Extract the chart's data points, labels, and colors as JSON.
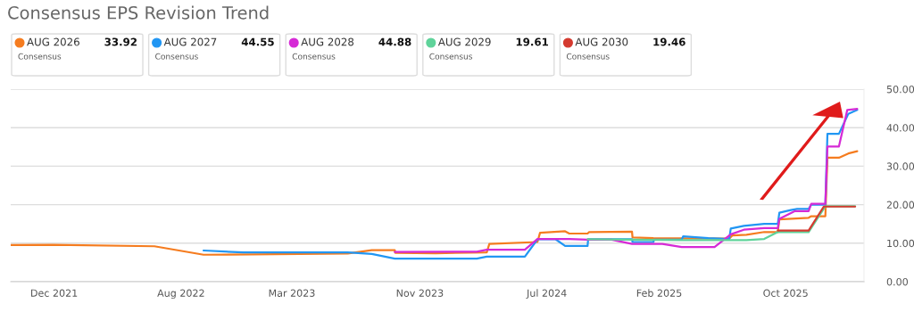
{
  "chart_data": {
    "type": "line",
    "title": "Consensus EPS Revision Trend",
    "legend_title": "Consensus",
    "legend": "top left",
    "grid": "y",
    "marker": "none",
    "line_style": "solid",
    "xlim": [
      "2021-09-09",
      "2026-02-28"
    ],
    "xticks": [
      {
        "value": "2021-12-01",
        "label": "Dec 2021"
      },
      {
        "value": "2022-08-01",
        "label": "Aug 2022"
      },
      {
        "value": "2023-03-01",
        "label": "Mar 2023"
      },
      {
        "value": "2023-11-01",
        "label": "Nov 2023"
      },
      {
        "value": "2024-07-01",
        "label": "Jul 2024"
      },
      {
        "value": "2025-02-01",
        "label": "Feb 2025"
      },
      {
        "value": "2025-10-01",
        "label": "Oct 2025"
      }
    ],
    "ylim": [
      0,
      50
    ],
    "yticks": [
      {
        "value": 0,
        "label": "0.00"
      },
      {
        "value": 10,
        "label": "10.00"
      },
      {
        "value": 20,
        "label": "20.00"
      },
      {
        "value": 30,
        "label": "30.00"
      },
      {
        "value": 40,
        "label": "40.00"
      },
      {
        "value": 50,
        "label": "50.00"
      }
    ],
    "series": [
      {
        "name": "AUG 2026",
        "color": "#f57c1f",
        "x": [
          "2021-09-09",
          "2021-11-29",
          "2022-06-11",
          "2022-09-13",
          "2023-06-16",
          "2023-08-01",
          "2023-09-14",
          "2023-09-15",
          "2023-12-01",
          "2024-03-08",
          "2024-03-13",
          "2024-06-13",
          "2024-06-18",
          "2024-08-05",
          "2024-08-13",
          "2024-09-17",
          "2024-09-20",
          "2024-12-11",
          "2024-12-12",
          "2025-01-21",
          "2025-06-15",
          "2025-06-21",
          "2025-07-18",
          "2025-08-21",
          "2025-09-16",
          "2025-09-19",
          "2025-11-14",
          "2025-11-19",
          "2025-12-16",
          "2025-12-20",
          "2026-01-11",
          "2026-01-29",
          "2026-02-15"
        ],
        "values": [
          9.5,
          9.6,
          9.2,
          7.0,
          7.3,
          8.2,
          8.2,
          7.5,
          7.4,
          7.6,
          9.8,
          10.3,
          12.7,
          13.1,
          12.5,
          12.5,
          12.9,
          13.0,
          11.5,
          11.3,
          11.2,
          12.0,
          12.2,
          12.9,
          12.9,
          16.2,
          16.6,
          17.0,
          17.0,
          32.2,
          32.2,
          33.3,
          33.9
        ]
      },
      {
        "name": "AUG 2027",
        "color": "#2196f3",
        "x": [
          "2022-09-13",
          "2022-11-28",
          "2023-06-16",
          "2023-08-01",
          "2023-09-14",
          "2024-02-18",
          "2024-03-08",
          "2024-05-20",
          "2024-06-13",
          "2024-07-18",
          "2024-08-05",
          "2024-09-17",
          "2024-09-18",
          "2024-12-11",
          "2024-12-12",
          "2025-01-21",
          "2025-01-22",
          "2025-03-16",
          "2025-03-19",
          "2025-05-06",
          "2025-06-15",
          "2025-06-18",
          "2025-07-13",
          "2025-08-21",
          "2025-09-16",
          "2025-09-19",
          "2025-10-11",
          "2025-10-23",
          "2025-11-14",
          "2025-11-19",
          "2025-12-16",
          "2025-12-20",
          "2026-01-11",
          "2026-01-29",
          "2026-02-15"
        ],
        "values": [
          8.1,
          7.6,
          7.6,
          7.2,
          6.0,
          6.0,
          6.5,
          6.5,
          11.0,
          11.0,
          9.3,
          9.3,
          11.0,
          11.0,
          10.3,
          10.3,
          10.9,
          10.9,
          11.8,
          11.3,
          11.1,
          13.8,
          14.5,
          15.0,
          15.0,
          17.9,
          18.6,
          18.9,
          18.9,
          20.0,
          20.0,
          38.4,
          38.4,
          43.6,
          44.6
        ]
      },
      {
        "name": "AUG 2028",
        "color": "#d62ad6",
        "x": [
          "2023-09-14",
          "2024-02-18",
          "2024-03-08",
          "2024-05-20",
          "2024-06-13",
          "2024-08-13",
          "2024-09-17",
          "2024-11-02",
          "2024-12-11",
          "2025-02-07",
          "2025-03-16",
          "2025-05-18",
          "2025-06-18",
          "2025-07-13",
          "2025-08-21",
          "2025-09-16",
          "2025-09-19",
          "2025-10-18",
          "2025-11-14",
          "2025-11-19",
          "2025-12-16",
          "2025-12-20",
          "2026-01-11",
          "2026-01-27",
          "2026-02-15"
        ],
        "values": [
          7.7,
          7.8,
          8.3,
          8.3,
          11.1,
          11.1,
          10.9,
          10.9,
          9.8,
          9.8,
          9.0,
          9.0,
          12.3,
          13.5,
          13.9,
          13.9,
          16.3,
          18.3,
          18.3,
          20.2,
          20.2,
          35.1,
          35.1,
          44.6,
          44.9
        ]
      },
      {
        "name": "AUG 2029",
        "color": "#5fd39a",
        "x": [
          "2024-09-17",
          "2025-03-16",
          "2025-07-18",
          "2025-08-21",
          "2025-09-16",
          "2025-11-14",
          "2025-12-16",
          "2026-02-11"
        ],
        "values": [
          11.0,
          10.8,
          10.8,
          11.1,
          12.9,
          12.9,
          19.6,
          19.6
        ]
      },
      {
        "name": "AUG 2030",
        "color": "#d43a2f",
        "x": [
          "2025-09-16",
          "2025-11-14",
          "2025-12-13",
          "2026-02-11"
        ],
        "values": [
          13.3,
          13.3,
          19.5,
          19.5
        ]
      }
    ],
    "annotations": [
      "33.92",
      "44.55",
      "44.88",
      "19.61",
      "19.46"
    ]
  }
}
